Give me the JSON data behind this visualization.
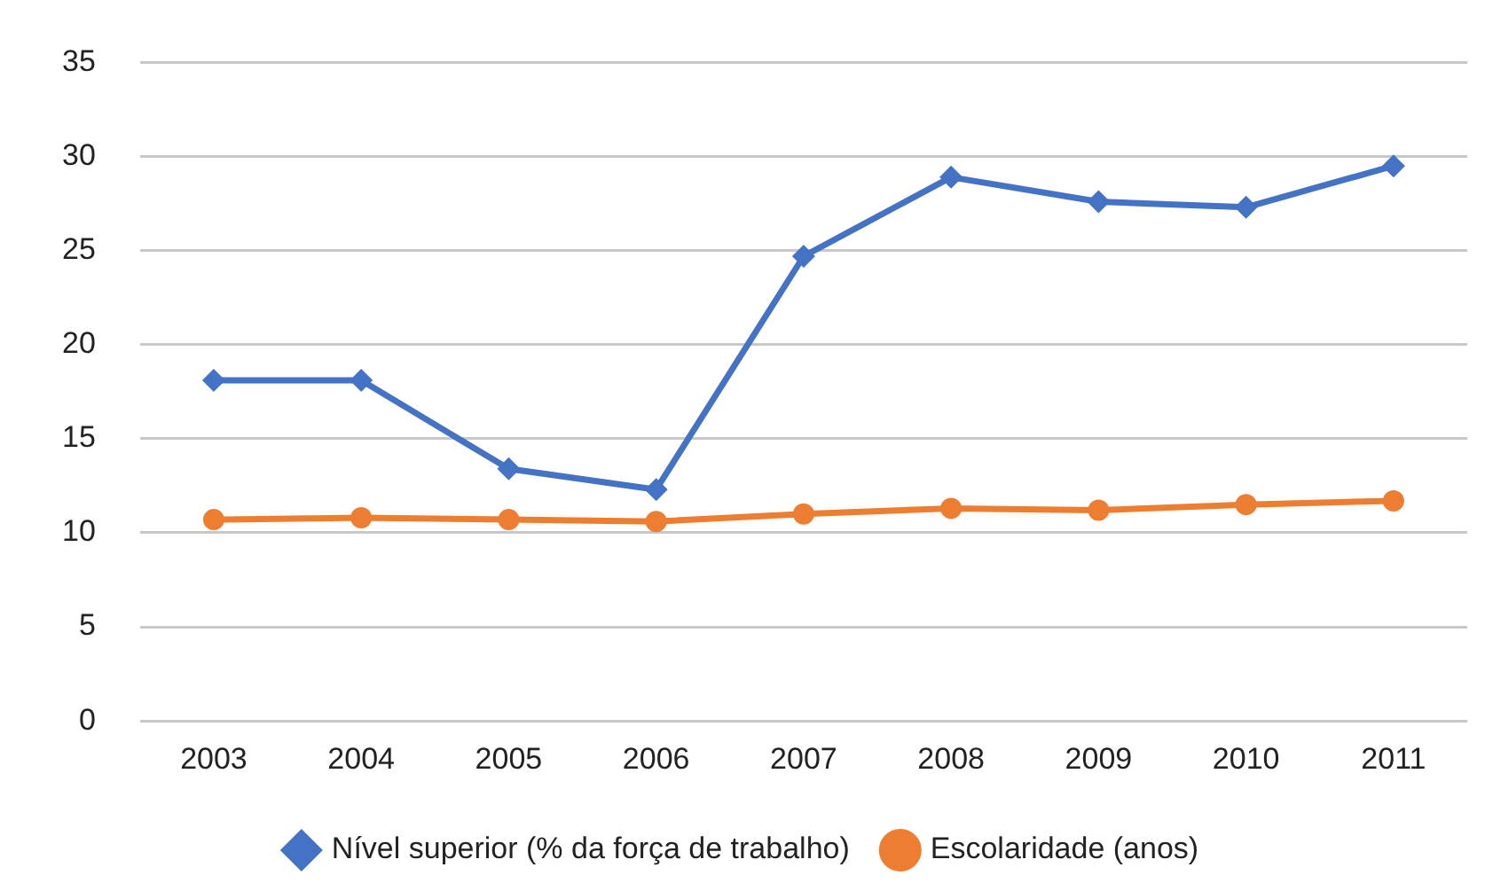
{
  "chart_data": {
    "type": "line",
    "categories": [
      "2003",
      "2004",
      "2005",
      "2006",
      "2007",
      "2008",
      "2009",
      "2010",
      "2011"
    ],
    "series": [
      {
        "name": "Nível superior (% da força de trabalho)",
        "color": "#4472c4",
        "marker": "diamond",
        "values": [
          18.1,
          18.1,
          13.4,
          12.3,
          24.7,
          28.9,
          27.6,
          27.3,
          29.5
        ]
      },
      {
        "name": "Escolaridade (anos)",
        "color": "#ed7d31",
        "marker": "circle",
        "values": [
          10.7,
          10.8,
          10.7,
          10.6,
          11.0,
          11.3,
          11.2,
          11.5,
          11.7
        ]
      }
    ],
    "ylim": [
      0,
      35
    ],
    "yticks": [
      0,
      5,
      10,
      15,
      20,
      25,
      30,
      35
    ],
    "grid": "y",
    "legend": "bottom",
    "line_style": "solid"
  }
}
